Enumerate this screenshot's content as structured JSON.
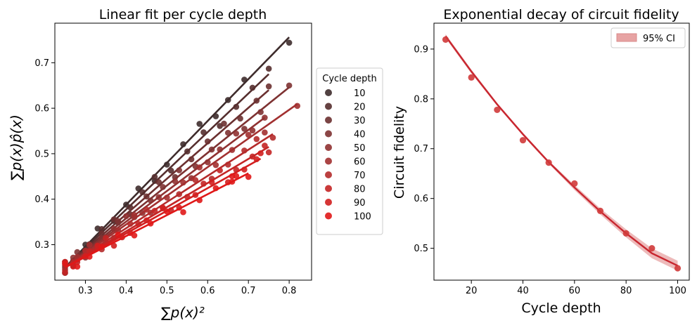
{
  "chart_data": [
    {
      "type": "scatter",
      "title": "Linear fit per cycle depth",
      "xlabel": "∑p(x)²",
      "ylabel": "∑p(x)p̂(x)",
      "xlim": [
        0.225,
        0.855
      ],
      "ylim": [
        0.222,
        0.787
      ],
      "x_ticks": [
        0.3,
        0.4,
        0.5,
        0.6,
        0.7,
        0.8
      ],
      "y_ticks": [
        0.3,
        0.4,
        0.5,
        0.6,
        0.7
      ],
      "grid": false,
      "legend": {
        "title": "Cycle depth",
        "placement": "outside-right"
      },
      "series": [
        {
          "name": "10",
          "color": "#3e2c2c",
          "slope": 0.92,
          "x": [
            0.25,
            0.27,
            0.3,
            0.33,
            0.37,
            0.4,
            0.43,
            0.47,
            0.5,
            0.54,
            0.58,
            0.62,
            0.65,
            0.69,
            0.8
          ]
        },
        {
          "name": "20",
          "color": "#552e2e",
          "slope": 0.85,
          "x": [
            0.25,
            0.28,
            0.31,
            0.34,
            0.38,
            0.41,
            0.44,
            0.47,
            0.51,
            0.55,
            0.59,
            0.63,
            0.67,
            0.71,
            0.75
          ]
        },
        {
          "name": "30",
          "color": "#6b3030",
          "slope": 0.78,
          "x": [
            0.25,
            0.27,
            0.3,
            0.34,
            0.37,
            0.41,
            0.45,
            0.48,
            0.52,
            0.56,
            0.6,
            0.64,
            0.68,
            0.72,
            0.75
          ]
        },
        {
          "name": "40",
          "color": "#7e3232",
          "slope": 0.72,
          "x": [
            0.25,
            0.28,
            0.31,
            0.34,
            0.38,
            0.42,
            0.46,
            0.49,
            0.53,
            0.57,
            0.61,
            0.65,
            0.69,
            0.73,
            0.8
          ]
        },
        {
          "name": "50",
          "color": "#903131",
          "slope": 0.672,
          "x": [
            0.25,
            0.27,
            0.3,
            0.33,
            0.37,
            0.4,
            0.44,
            0.48,
            0.52,
            0.56,
            0.6,
            0.63,
            0.67,
            0.71,
            0.74
          ]
        },
        {
          "name": "60",
          "color": "#a23030",
          "slope": 0.63,
          "x": [
            0.25,
            0.28,
            0.31,
            0.35,
            0.38,
            0.42,
            0.46,
            0.5,
            0.54,
            0.58,
            0.62,
            0.66,
            0.7,
            0.74,
            0.82
          ]
        },
        {
          "name": "70",
          "color": "#b42b2b",
          "slope": 0.575,
          "x": [
            0.25,
            0.27,
            0.3,
            0.34,
            0.37,
            0.41,
            0.45,
            0.49,
            0.53,
            0.57,
            0.61,
            0.65,
            0.69,
            0.72,
            0.76
          ]
        },
        {
          "name": "80",
          "color": "#c42525",
          "slope": 0.53,
          "x": [
            0.25,
            0.28,
            0.31,
            0.35,
            0.39,
            0.43,
            0.47,
            0.51,
            0.55,
            0.59,
            0.63,
            0.67,
            0.71,
            0.74,
            0.75
          ]
        },
        {
          "name": "90",
          "color": "#d21f1f",
          "slope": 0.498,
          "x": [
            0.25,
            0.27,
            0.3,
            0.33,
            0.37,
            0.41,
            0.45,
            0.49,
            0.53,
            0.57,
            0.61,
            0.65,
            0.69,
            0.72,
            0.73
          ]
        },
        {
          "name": "100",
          "color": "#e01818",
          "slope": 0.46,
          "x": [
            0.25,
            0.28,
            0.31,
            0.34,
            0.38,
            0.42,
            0.46,
            0.5,
            0.54,
            0.58,
            0.62,
            0.66,
            0.7,
            0.66,
            0.67
          ]
        }
      ]
    },
    {
      "type": "scatter",
      "title": "Exponential decay of circuit fidelity",
      "xlabel": "Cycle depth",
      "ylabel": "Circuit fidelity",
      "xlim": [
        5.5,
        104.5
      ],
      "ylim": [
        0.436,
        0.952
      ],
      "x_ticks": [
        20,
        40,
        60,
        80,
        100
      ],
      "y_ticks": [
        0.5,
        0.6,
        0.7,
        0.8,
        0.9
      ],
      "grid": false,
      "legend": {
        "entries": [
          "95% CI"
        ],
        "placement": "upper right"
      },
      "points": {
        "x": [
          10,
          20,
          30,
          40,
          50,
          60,
          70,
          80,
          90,
          100
        ],
        "y": [
          0.919,
          0.843,
          0.778,
          0.717,
          0.672,
          0.63,
          0.575,
          0.53,
          0.5,
          0.46
        ],
        "color": "#d03a3a"
      },
      "fit": {
        "x": [
          10,
          20,
          30,
          40,
          50,
          60,
          70,
          80,
          90,
          100
        ],
        "y": [
          0.926,
          0.855,
          0.789,
          0.729,
          0.673,
          0.622,
          0.574,
          0.53,
          0.49,
          0.465
        ],
        "color": "#c8262f"
      },
      "ci": {
        "lower": [
          0.922,
          0.851,
          0.786,
          0.726,
          0.67,
          0.617,
          0.568,
          0.522,
          0.48,
          0.455
        ],
        "upper": [
          0.93,
          0.859,
          0.792,
          0.732,
          0.676,
          0.627,
          0.58,
          0.538,
          0.5,
          0.475
        ],
        "color": "#e7a3a3"
      }
    }
  ]
}
